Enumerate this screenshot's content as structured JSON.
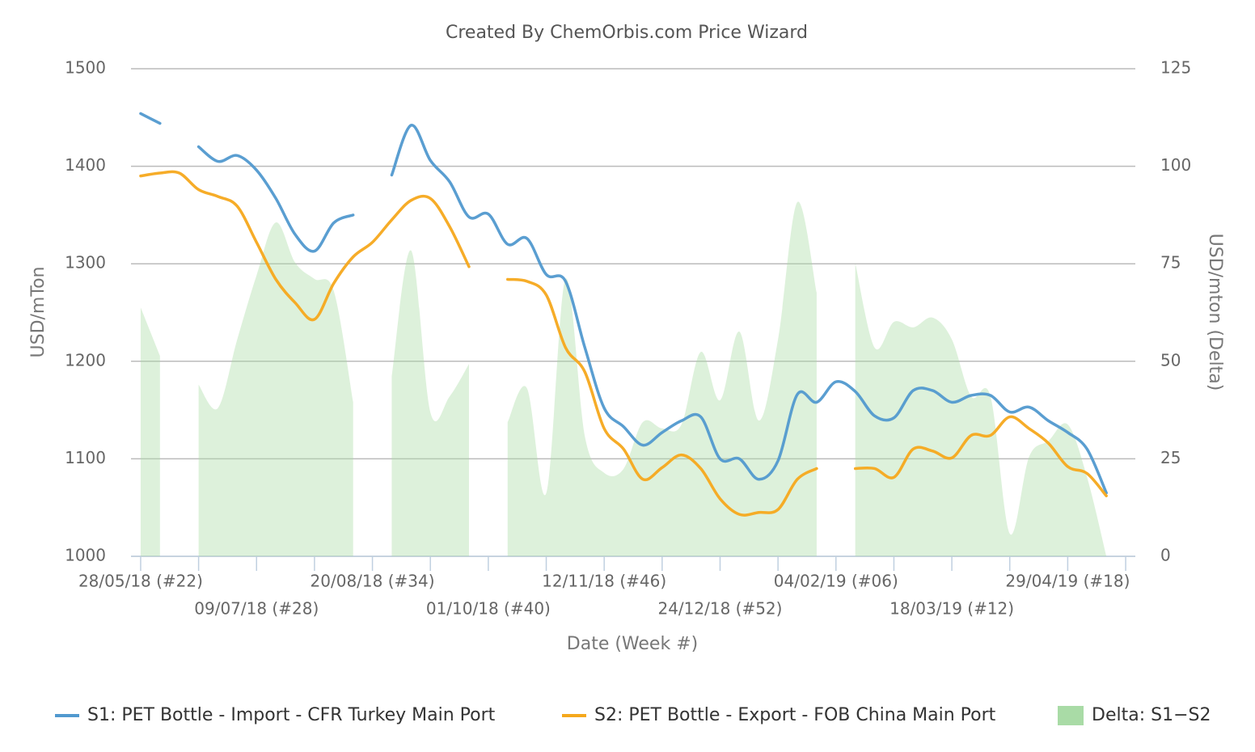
{
  "chart_data": {
    "type": "line",
    "title": "Created By ChemOrbis.com Price Wizard",
    "x_label": "Date (Week #)",
    "y_label": "USD/mTon",
    "y2_label": "USD/mton (Delta)",
    "categories": [
      "28/05/18 (#22)",
      null,
      null,
      null,
      null,
      null,
      "09/07/18 (#28)",
      null,
      null,
      null,
      null,
      null,
      "20/08/18 (#34)",
      null,
      null,
      null,
      null,
      null,
      "01/10/18 (#40)",
      null,
      null,
      null,
      null,
      null,
      "12/11/18 (#46)",
      null,
      null,
      null,
      null,
      null,
      "24/12/18 (#52)",
      null,
      null,
      null,
      null,
      null,
      "04/02/19 (#06)",
      null,
      null,
      null,
      null,
      null,
      "18/03/19 (#12)",
      null,
      null,
      null,
      null,
      null,
      "29/04/19 (#18)",
      null,
      null,
      null
    ],
    "ylim": [
      1000,
      1500
    ],
    "yticks": [
      1000,
      1100,
      1200,
      1300,
      1400,
      1500
    ],
    "y2lim": [
      0,
      125
    ],
    "y2ticks": [
      0,
      25,
      50,
      75,
      100,
      125
    ],
    "grid": true,
    "legend": "bottom",
    "series": [
      {
        "name": "Delta: S1−S2",
        "color": "#a9dba6",
        "type": "area",
        "axis": "y2",
        "values": [
          63.8,
          51.4,
          null,
          44,
          38,
          55.6,
          72,
          85.6,
          75.3,
          71.1,
          68,
          39.6,
          null,
          46.2,
          78.4,
          36.9,
          41,
          49.3,
          null,
          34.4,
          43.1,
          16.2,
          71.1,
          30.7,
          21.4,
          22.4,
          34.4,
          32.8,
          33.8,
          52.4,
          40,
          57.6,
          34.8,
          55.6,
          90.8,
          67.6,
          null,
          75.2,
          53.5,
          60.1,
          58.7,
          61.2,
          55.6,
          41,
          41,
          5.8,
          25.5,
          29.6,
          33.8,
          20.3,
          0,
          null
        ]
      },
      {
        "name": "S1: PET Bottle - Import - CFR Turkey Main Port",
        "color": "#5199cf",
        "values": [
          1454,
          1444,
          null,
          1420,
          1405,
          1411,
          1396,
          1367,
          1330,
          1313,
          1342,
          1350,
          null,
          1391,
          1442,
          1406,
          1384,
          1348,
          1351,
          1320,
          1326,
          1289,
          1282,
          1214,
          1152,
          1133,
          1114,
          1127,
          1139,
          1143,
          1100,
          1100,
          1079,
          1098,
          1166,
          1158,
          1179,
          1169,
          1144,
          1142,
          1170,
          1170,
          1158,
          1165,
          1165,
          1148,
          1153,
          1139,
          1127,
          1110,
          1065,
          null
        ]
      },
      {
        "name": "S2: PET Bottle - Export - FOB China Main Port",
        "color": "#f5a81c",
        "values": [
          1390,
          1393,
          1393,
          1376,
          1369,
          1359,
          1322,
          1284,
          1260,
          1243,
          1280,
          1307,
          1322,
          1345,
          1365,
          1367,
          1338,
          1297,
          null,
          1284,
          1282,
          1268,
          1214,
          1189,
          1131,
          1110,
          1079,
          1091,
          1104,
          1090,
          1059,
          1043,
          1045,
          1048,
          1079,
          1090,
          null,
          1090,
          1090,
          1081,
          1110,
          1108,
          1101,
          1124,
          1124,
          1143,
          1131,
          1116,
          1092,
          1085,
          1062,
          null
        ]
      }
    ]
  }
}
